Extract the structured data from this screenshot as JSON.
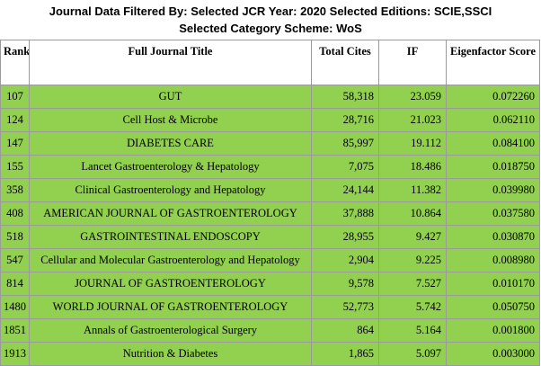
{
  "header": {
    "line1": "Journal Data Filtered By:  Selected JCR Year: 2020 Selected Editions: SCIE,SSCI",
    "line2": "Selected Category Scheme: WoS"
  },
  "columns": {
    "rank": "Rank",
    "title": "Full Journal Title",
    "total_cites": "Total Cites",
    "if": "IF",
    "eigenfactor": "Eigenfactor Score"
  },
  "rows": [
    {
      "rank": "107",
      "title": "GUT",
      "total_cites": "58,318",
      "if": "23.059",
      "eigenfactor": "0.072260"
    },
    {
      "rank": "124",
      "title": "Cell Host & Microbe",
      "total_cites": "28,716",
      "if": "21.023",
      "eigenfactor": "0.062110"
    },
    {
      "rank": "147",
      "title": "DIABETES CARE",
      "total_cites": "85,997",
      "if": "19.112",
      "eigenfactor": "0.084100"
    },
    {
      "rank": "155",
      "title": "Lancet Gastroenterology & Hepatology",
      "total_cites": "7,075",
      "if": "18.486",
      "eigenfactor": "0.018750"
    },
    {
      "rank": "358",
      "title": "Clinical Gastroenterology and Hepatology",
      "total_cites": "24,144",
      "if": "11.382",
      "eigenfactor": "0.039980"
    },
    {
      "rank": "408",
      "title": "AMERICAN JOURNAL OF GASTROENTEROLOGY",
      "total_cites": "37,888",
      "if": "10.864",
      "eigenfactor": "0.037580"
    },
    {
      "rank": "518",
      "title": "GASTROINTESTINAL ENDOSCOPY",
      "total_cites": "28,955",
      "if": "9.427",
      "eigenfactor": "0.030870"
    },
    {
      "rank": "547",
      "title": "Cellular and Molecular Gastroenterology and Hepatology",
      "total_cites": "2,904",
      "if": "9.225",
      "eigenfactor": "0.008980"
    },
    {
      "rank": "814",
      "title": "JOURNAL OF GASTROENTEROLOGY",
      "total_cites": "9,578",
      "if": "7.527",
      "eigenfactor": "0.010170"
    },
    {
      "rank": "1480",
      "title": "WORLD JOURNAL OF GASTROENTEROLOGY",
      "total_cites": "52,773",
      "if": "5.742",
      "eigenfactor": "0.050750"
    },
    {
      "rank": "1851",
      "title": "Annals of Gastroenterological Surgery",
      "total_cites": "864",
      "if": "5.164",
      "eigenfactor": "0.001800"
    },
    {
      "rank": "1913",
      "title": "Nutrition & Diabetes",
      "total_cites": "1,865",
      "if": "5.097",
      "eigenfactor": "0.003000"
    }
  ],
  "colors": {
    "row_highlight": "#92d050",
    "border": "#9a9a9a"
  }
}
